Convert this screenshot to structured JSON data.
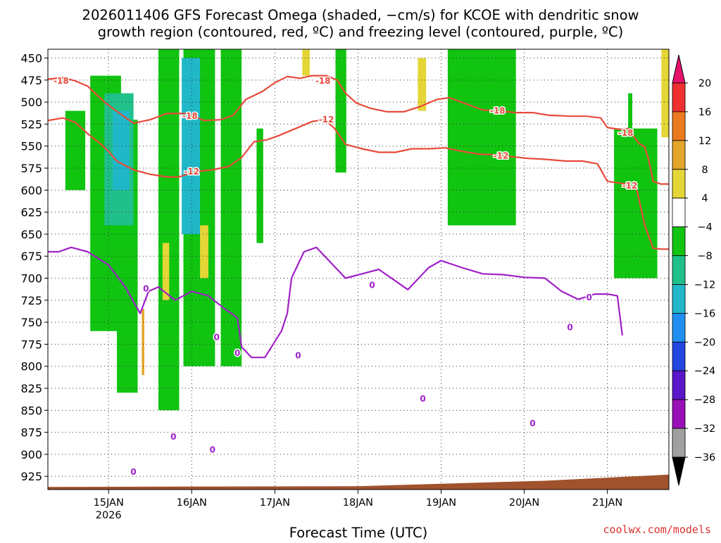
{
  "chart_data": {
    "type": "heatmap",
    "title_lines": [
      "2026011406 GFS Forecast Omega (shaded, −cm/s) for KCOE with dendritic snow",
      "growth region (contoured, red, ºC) and freezing level (contoured, purple, ºC)"
    ],
    "xlabel": "Forecast Time (UTC)",
    "ylabel": "",
    "credit": "coolwx.com/models",
    "y_axis": {
      "unit": "hPa",
      "reversed": true,
      "range": [
        440,
        940
      ],
      "ticks": [
        450,
        475,
        500,
        525,
        550,
        575,
        600,
        625,
        650,
        675,
        700,
        725,
        750,
        775,
        800,
        825,
        850,
        875,
        900,
        925
      ]
    },
    "x_axis": {
      "unit": "day (2026, UTC)",
      "range": [
        14.27,
        21.74
      ],
      "ticks": [
        {
          "v": 15,
          "label": "15JAN",
          "sub": "2026"
        },
        {
          "v": 16,
          "label": "16JAN",
          "sub": ""
        },
        {
          "v": 17,
          "label": "17JAN",
          "sub": ""
        },
        {
          "v": 18,
          "label": "18JAN",
          "sub": ""
        },
        {
          "v": 19,
          "label": "19JAN",
          "sub": ""
        },
        {
          "v": 20,
          "label": "20JAN",
          "sub": ""
        },
        {
          "v": 21,
          "label": "21JAN",
          "sub": ""
        }
      ]
    },
    "grid": "dotted",
    "colorbar": {
      "labels": [
        "20",
        "16",
        "12",
        "8",
        "4",
        "−4",
        "−8",
        "−12",
        "−16",
        "−20",
        "−24",
        "−28",
        "−32",
        "−36"
      ],
      "bins_top_to_bottom": [
        {
          "min": 20,
          "max": null,
          "color": "#e8126c"
        },
        {
          "min": 16,
          "max": 20,
          "color": "#ee3030"
        },
        {
          "min": 12,
          "max": 16,
          "color": "#ec7a1e"
        },
        {
          "min": 8,
          "max": 12,
          "color": "#e3a52a"
        },
        {
          "min": 4,
          "max": 8,
          "color": "#e4d636"
        },
        {
          "min": -4,
          "max": 4,
          "color": "#ffffff"
        },
        {
          "min": -8,
          "max": -4,
          "color": "#10c410"
        },
        {
          "min": -12,
          "max": -8,
          "color": "#1fc08a"
        },
        {
          "min": -16,
          "max": -12,
          "color": "#20b8c8"
        },
        {
          "min": -20,
          "max": -16,
          "color": "#1e8ff0"
        },
        {
          "min": -24,
          "max": -20,
          "color": "#2345e0"
        },
        {
          "min": -28,
          "max": -24,
          "color": "#5a16c8"
        },
        {
          "min": -32,
          "max": -28,
          "color": "#9a10b8"
        },
        {
          "min": -36,
          "max": -32,
          "color": "#a0a0a0"
        },
        {
          "min": null,
          "max": -36,
          "color": "#000000"
        }
      ]
    },
    "omega_regions": [
      {
        "label": "light-green",
        "color": "#10c410",
        "x0": 14.78,
        "x1": 15.15,
        "p0": 470,
        "p1": 760
      },
      {
        "label": "light-green",
        "color": "#10c410",
        "x0": 14.48,
        "x1": 14.72,
        "p0": 510,
        "p1": 600
      },
      {
        "label": "light-green",
        "color": "#10c410",
        "x0": 15.1,
        "x1": 15.35,
        "p0": 520,
        "p1": 830
      },
      {
        "label": "light-green",
        "color": "#10c410",
        "x0": 15.6,
        "x1": 15.85,
        "p0": 440,
        "p1": 850
      },
      {
        "label": "light-green",
        "color": "#10c410",
        "x0": 15.9,
        "x1": 16.28,
        "p0": 440,
        "p1": 800
      },
      {
        "label": "light-green",
        "color": "#10c410",
        "x0": 16.35,
        "x1": 16.6,
        "p0": 440,
        "p1": 800
      },
      {
        "label": "light-green",
        "color": "#10c410",
        "x0": 16.78,
        "x1": 16.86,
        "p0": 530,
        "p1": 660
      },
      {
        "label": "light-green",
        "color": "#10c410",
        "x0": 17.73,
        "x1": 17.86,
        "p0": 440,
        "p1": 580
      },
      {
        "label": "light-green",
        "color": "#10c410",
        "x0": 19.08,
        "x1": 19.9,
        "p0": 440,
        "p1": 640
      },
      {
        "label": "light-green",
        "color": "#10c410",
        "x0": 21.08,
        "x1": 21.6,
        "p0": 530,
        "p1": 700
      },
      {
        "label": "light-green",
        "color": "#10c410",
        "x0": 21.25,
        "x1": 21.3,
        "p0": 490,
        "p1": 690
      },
      {
        "label": "aqua-green",
        "color": "#1fc08a",
        "x0": 14.95,
        "x1": 15.3,
        "p0": 490,
        "p1": 640
      },
      {
        "label": "cyan",
        "color": "#20b8c8",
        "x0": 15.05,
        "x1": 15.25,
        "p0": 510,
        "p1": 600
      },
      {
        "label": "cyan",
        "color": "#20b8c8",
        "x0": 15.88,
        "x1": 16.1,
        "p0": 450,
        "p1": 650
      },
      {
        "label": "yellow",
        "color": "#e4d636",
        "x0": 17.33,
        "x1": 17.42,
        "p0": 440,
        "p1": 470
      },
      {
        "label": "yellow",
        "color": "#e4d636",
        "x0": 18.72,
        "x1": 18.82,
        "p0": 450,
        "p1": 510
      },
      {
        "label": "yellow",
        "color": "#e4d636",
        "x0": 21.65,
        "x1": 21.74,
        "p0": 440,
        "p1": 540
      },
      {
        "label": "yellow",
        "color": "#e4d636",
        "x0": 15.65,
        "x1": 15.73,
        "p0": 660,
        "p1": 725
      },
      {
        "label": "yellow",
        "color": "#e4d636",
        "x0": 16.1,
        "x1": 16.2,
        "p0": 640,
        "p1": 700
      },
      {
        "label": "orange",
        "color": "#e3a52a",
        "x0": 15.4,
        "x1": 15.43,
        "p0": 735,
        "p1": 810
      }
    ],
    "series": [
      {
        "name": "-18",
        "color": "#e84a3a",
        "label_at": [
          [
            14.43,
            476
          ],
          [
            15.98,
            516
          ],
          [
            17.58,
            476
          ],
          [
            19.68,
            510
          ],
          [
            21.22,
            535
          ]
        ],
        "points": [
          [
            14.27,
            474
          ],
          [
            14.45,
            472
          ],
          [
            14.6,
            476
          ],
          [
            14.75,
            482
          ],
          [
            14.95,
            500
          ],
          [
            15.12,
            512
          ],
          [
            15.3,
            524
          ],
          [
            15.5,
            520
          ],
          [
            15.7,
            513
          ],
          [
            15.95,
            513
          ],
          [
            16.15,
            521
          ],
          [
            16.35,
            520
          ],
          [
            16.5,
            515
          ],
          [
            16.65,
            497
          ],
          [
            16.85,
            488
          ],
          [
            17.0,
            478
          ],
          [
            17.15,
            471
          ],
          [
            17.3,
            473
          ],
          [
            17.45,
            470
          ],
          [
            17.62,
            470
          ],
          [
            17.75,
            475
          ],
          [
            17.85,
            490
          ],
          [
            17.98,
            501
          ],
          [
            18.15,
            507
          ],
          [
            18.35,
            511
          ],
          [
            18.55,
            511
          ],
          [
            18.75,
            505
          ],
          [
            18.95,
            497
          ],
          [
            19.1,
            495
          ],
          [
            19.3,
            502
          ],
          [
            19.5,
            509
          ],
          [
            19.7,
            510
          ],
          [
            19.9,
            512
          ],
          [
            20.1,
            512
          ],
          [
            20.3,
            515
          ],
          [
            20.55,
            516
          ],
          [
            20.75,
            516
          ],
          [
            20.92,
            518
          ],
          [
            21.0,
            529
          ],
          [
            21.15,
            531
          ],
          [
            21.25,
            530
          ],
          [
            21.38,
            547
          ],
          [
            21.45,
            551
          ],
          [
            21.5,
            567
          ],
          [
            21.55,
            590
          ],
          [
            21.64,
            593
          ],
          [
            21.74,
            593
          ]
        ]
      },
      {
        "name": "-12",
        "color": "#e84a3a",
        "label_at": [
          [
            16.0,
            579
          ],
          [
            17.62,
            520
          ],
          [
            19.72,
            561
          ],
          [
            21.27,
            595
          ]
        ],
        "points": [
          [
            14.27,
            521
          ],
          [
            14.45,
            518
          ],
          [
            14.6,
            523
          ],
          [
            14.75,
            536
          ],
          [
            14.9,
            547
          ],
          [
            15.0,
            556
          ],
          [
            15.1,
            567
          ],
          [
            15.3,
            577
          ],
          [
            15.5,
            582
          ],
          [
            15.7,
            585
          ],
          [
            15.85,
            585
          ],
          [
            16.05,
            579
          ],
          [
            16.25,
            577
          ],
          [
            16.45,
            573
          ],
          [
            16.6,
            563
          ],
          [
            16.75,
            545
          ],
          [
            16.9,
            543
          ],
          [
            17.05,
            538
          ],
          [
            17.25,
            530
          ],
          [
            17.45,
            522
          ],
          [
            17.6,
            520
          ],
          [
            17.72,
            530
          ],
          [
            17.85,
            548
          ],
          [
            18.05,
            553
          ],
          [
            18.25,
            557
          ],
          [
            18.45,
            557
          ],
          [
            18.65,
            553
          ],
          [
            18.85,
            553
          ],
          [
            19.05,
            552
          ],
          [
            19.25,
            556
          ],
          [
            19.45,
            559
          ],
          [
            19.65,
            560
          ],
          [
            19.85,
            562
          ],
          [
            20.05,
            564
          ],
          [
            20.25,
            565
          ],
          [
            20.5,
            567
          ],
          [
            20.7,
            567
          ],
          [
            20.88,
            570
          ],
          [
            21.0,
            590
          ],
          [
            21.15,
            592
          ],
          [
            21.22,
            593
          ],
          [
            21.35,
            598
          ],
          [
            21.45,
            640
          ],
          [
            21.55,
            666
          ],
          [
            21.65,
            667
          ],
          [
            21.74,
            667
          ]
        ]
      },
      {
        "name": "0",
        "color": "#a020c8",
        "label_at": [
          [
            15.45,
            712
          ],
          [
            16.55,
            785
          ],
          [
            17.28,
            788
          ],
          [
            18.17,
            708
          ],
          [
            18.78,
            837
          ],
          [
            20.1,
            865
          ],
          [
            20.78,
            722
          ],
          [
            20.55,
            756
          ],
          [
            15.3,
            920
          ],
          [
            15.78,
            880
          ],
          [
            16.25,
            895
          ],
          [
            16.3,
            767
          ]
        ],
        "points": [
          [
            14.27,
            670
          ],
          [
            14.4,
            670
          ],
          [
            14.55,
            665
          ],
          [
            14.75,
            670
          ],
          [
            15.0,
            685
          ],
          [
            15.2,
            710
          ],
          [
            15.38,
            740
          ],
          [
            15.48,
            715
          ],
          [
            15.6,
            710
          ],
          [
            15.8,
            725
          ],
          [
            16.0,
            715
          ],
          [
            16.2,
            720
          ],
          [
            16.4,
            735
          ],
          [
            16.55,
            745
          ],
          [
            16.6,
            778
          ],
          [
            16.72,
            790
          ],
          [
            16.88,
            790
          ],
          [
            17.08,
            760
          ],
          [
            17.15,
            740
          ],
          [
            17.2,
            700
          ],
          [
            17.35,
            670
          ],
          [
            17.5,
            665
          ],
          [
            17.65,
            680
          ],
          [
            17.85,
            700
          ],
          [
            18.05,
            695
          ],
          [
            18.25,
            690
          ],
          [
            18.45,
            703
          ],
          [
            18.6,
            713
          ],
          [
            18.85,
            688
          ],
          [
            19.0,
            680
          ],
          [
            19.25,
            688
          ],
          [
            19.5,
            695
          ],
          [
            19.75,
            696
          ],
          [
            20.0,
            699
          ],
          [
            20.25,
            700
          ],
          [
            20.45,
            715
          ],
          [
            20.65,
            724
          ],
          [
            20.85,
            718
          ],
          [
            21.0,
            718
          ],
          [
            21.12,
            720
          ],
          [
            21.18,
            765
          ]
        ]
      }
    ],
    "terrain": {
      "color": "#a0522d",
      "p_top_start": 937,
      "p_top_end": 923
    }
  }
}
